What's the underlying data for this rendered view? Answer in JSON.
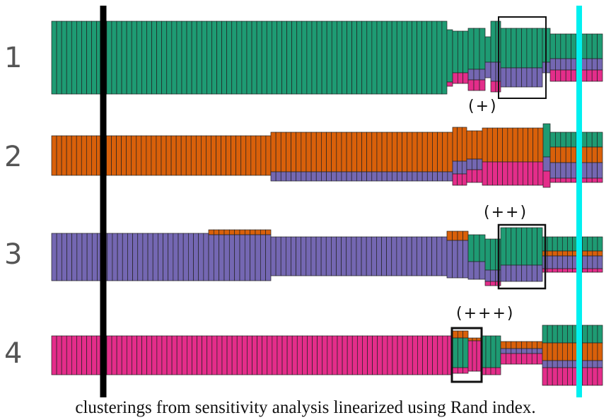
{
  "rows": [
    {
      "label": "1",
      "main_color_name": "green"
    },
    {
      "label": "2",
      "main_color_name": "orange"
    },
    {
      "label": "3",
      "main_color_name": "purple"
    },
    {
      "label": "4",
      "main_color_name": "pink"
    }
  ],
  "annotations": {
    "plus1": "(+)",
    "plus2": "(++)",
    "plus3": "(+++)"
  },
  "caption": "clusterings from sensitivity analysis linearized using Rand index.",
  "colors": {
    "green": "#1e9b73",
    "orange": "#d9600a",
    "purple": "#7467b2",
    "pink": "#e42d8a",
    "stroke": "#222222",
    "marker_line": "#000000",
    "highlight_line": "#00f0f0"
  }
}
